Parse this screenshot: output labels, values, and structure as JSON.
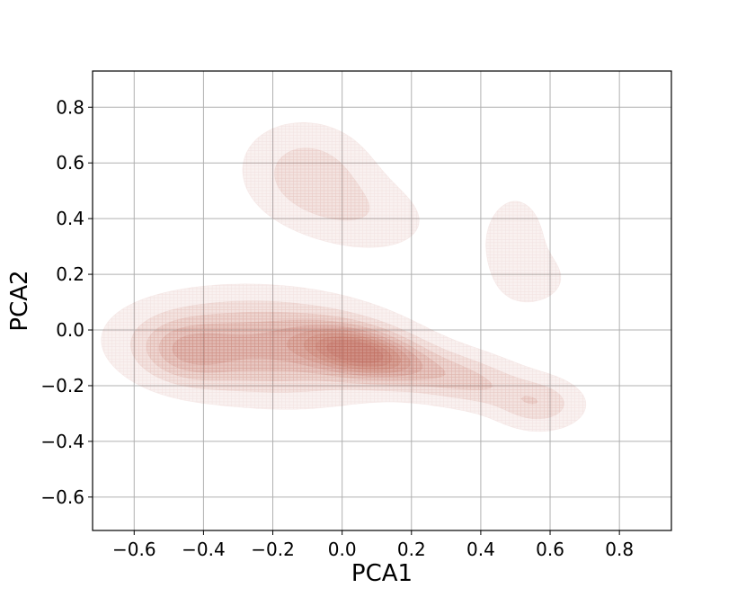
{
  "chart_data": {
    "type": "kde-contour",
    "title": "",
    "xlabel": "PCA1",
    "ylabel": "PCA2",
    "xlim": [
      -0.72,
      0.95
    ],
    "ylim": [
      -0.72,
      0.93
    ],
    "x_ticks": [
      -0.6,
      -0.4,
      -0.2,
      0.0,
      0.2,
      0.4,
      0.6,
      0.8
    ],
    "x_tick_labels": [
      "−0.6",
      "−0.4",
      "−0.2",
      "0.0",
      "0.2",
      "0.4",
      "0.6",
      "0.8"
    ],
    "y_ticks": [
      -0.6,
      -0.4,
      -0.2,
      0.0,
      0.2,
      0.4,
      0.6,
      0.8
    ],
    "y_tick_labels": [
      "−0.6",
      "−0.4",
      "−0.2",
      "0.0",
      "0.2",
      "0.4",
      "0.6",
      "0.8"
    ],
    "grid": true,
    "color": "#c0695a",
    "contour_levels": 9,
    "density_components": [
      {
        "x": 0.05,
        "y": -0.08,
        "sx": 0.11,
        "sy": 0.055,
        "rot": -0.28,
        "w": 1.0
      },
      {
        "x": -0.22,
        "y": -0.06,
        "sx": 0.23,
        "sy": 0.11,
        "rot": -0.08,
        "w": 0.65
      },
      {
        "x": -0.45,
        "y": -0.08,
        "sx": 0.09,
        "sy": 0.07,
        "rot": -0.2,
        "w": 0.35
      },
      {
        "x": 0.33,
        "y": -0.17,
        "sx": 0.16,
        "sy": 0.06,
        "rot": -0.28,
        "w": 0.4
      },
      {
        "x": 0.57,
        "y": -0.27,
        "sx": 0.08,
        "sy": 0.06,
        "rot": 0.0,
        "w": 0.25
      },
      {
        "x": -0.1,
        "y": 0.57,
        "sx": 0.12,
        "sy": 0.11,
        "rot": -0.5,
        "w": 0.28
      },
      {
        "x": 0.05,
        "y": 0.42,
        "sx": 0.14,
        "sy": 0.09,
        "rot": -0.3,
        "w": 0.18
      },
      {
        "x": 0.5,
        "y": 0.3,
        "sx": 0.08,
        "sy": 0.16,
        "rot": 0.0,
        "w": 0.14
      },
      {
        "x": 0.58,
        "y": 0.18,
        "sx": 0.06,
        "sy": 0.06,
        "rot": 0.0,
        "w": 0.08
      }
    ]
  }
}
